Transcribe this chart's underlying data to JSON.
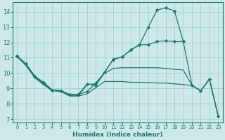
{
  "xlabel": "Humidex (Indice chaleur)",
  "bg_color": "#cce8e8",
  "line_color": "#1a7a6e",
  "grid_color": "#99cccc",
  "xlim": [
    -0.5,
    23.5
  ],
  "ylim": [
    6.8,
    14.6
  ],
  "yticks": [
    7,
    8,
    9,
    10,
    11,
    12,
    13,
    14
  ],
  "xticks": [
    0,
    1,
    2,
    3,
    4,
    5,
    6,
    7,
    8,
    9,
    10,
    11,
    12,
    13,
    14,
    15,
    16,
    17,
    18,
    19,
    20,
    21,
    22,
    23
  ],
  "s1_x": [
    0,
    1,
    2,
    3,
    4,
    5,
    6,
    7,
    8,
    9,
    10,
    11,
    12,
    13,
    14,
    15,
    16,
    17,
    18,
    19
  ],
  "s1_y": [
    11.1,
    10.6,
    9.8,
    9.4,
    8.9,
    8.85,
    8.6,
    8.6,
    9.3,
    9.2,
    10.05,
    10.9,
    11.05,
    11.5,
    11.85,
    13.0,
    14.1,
    14.25,
    14.05,
    12.05
  ],
  "s2_x": [
    0,
    1,
    2,
    3,
    4,
    5,
    6,
    7,
    8,
    9,
    10,
    11,
    12,
    13,
    14,
    15,
    16,
    17,
    18,
    19,
    20,
    21,
    22,
    23
  ],
  "s2_y": [
    11.1,
    10.6,
    9.8,
    9.4,
    8.9,
    8.85,
    8.6,
    8.6,
    8.8,
    9.35,
    10.05,
    10.9,
    11.05,
    11.5,
    11.85,
    11.85,
    12.05,
    12.1,
    12.05,
    12.05,
    9.2,
    8.85,
    9.6,
    7.2
  ],
  "s3_x": [
    0,
    1,
    2,
    3,
    4,
    5,
    6,
    7,
    8,
    9,
    10,
    11,
    12,
    13,
    14,
    15,
    16,
    17,
    18,
    19,
    20,
    21,
    22,
    23
  ],
  "s3_y": [
    11.1,
    10.55,
    9.75,
    9.3,
    8.9,
    8.85,
    8.55,
    8.55,
    9.25,
    9.3,
    10.0,
    10.3,
    10.35,
    10.35,
    10.35,
    10.35,
    10.35,
    10.3,
    10.25,
    10.2,
    9.2,
    8.85,
    9.6,
    7.2
  ],
  "s4_x": [
    0,
    1,
    2,
    3,
    4,
    5,
    6,
    7,
    8,
    9,
    10,
    11,
    12,
    13,
    14,
    15,
    16,
    17,
    18,
    19,
    20,
    21,
    22,
    23
  ],
  "s4_y": [
    11.05,
    10.5,
    9.7,
    9.25,
    8.85,
    8.8,
    8.5,
    8.5,
    8.65,
    9.05,
    9.45,
    9.45,
    9.45,
    9.4,
    9.4,
    9.38,
    9.35,
    9.35,
    9.3,
    9.25,
    9.2,
    8.85,
    9.6,
    7.2
  ]
}
